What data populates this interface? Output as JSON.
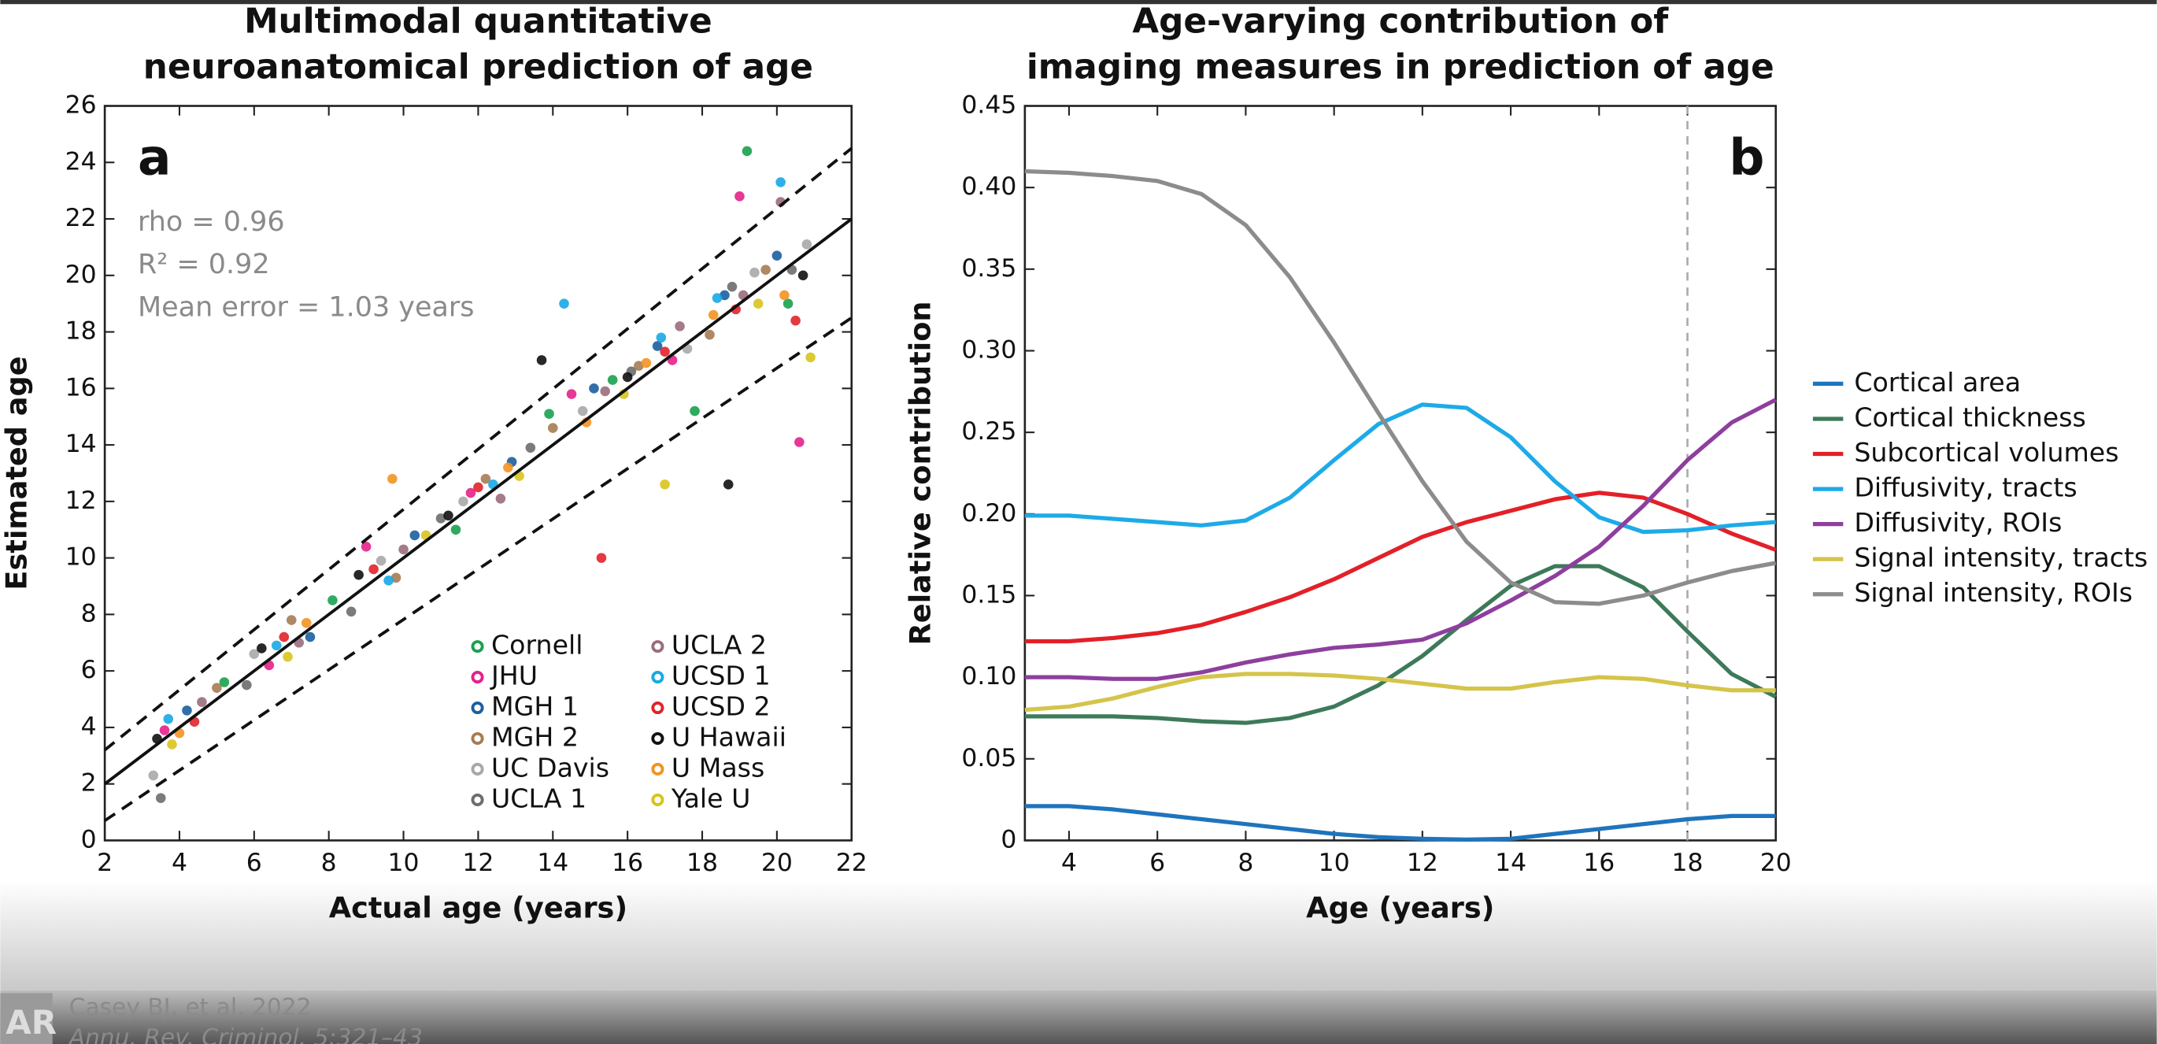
{
  "chart_data": [
    {
      "type": "scatter",
      "title": [
        "Multimodal quantitative",
        "neuroanatomical prediction of age"
      ],
      "x_label": "Actual age (years)",
      "y_label": "Estimated age",
      "panel_label": "a",
      "annotations": [
        "rho = 0.96",
        "R² = 0.92",
        "Mean error = 1.03 years"
      ],
      "xlim": [
        2,
        22
      ],
      "xticks": [
        2,
        4,
        6,
        8,
        10,
        12,
        14,
        16,
        18,
        20,
        22
      ],
      "ylim": [
        0,
        26
      ],
      "yticks": [
        0,
        2,
        4,
        6,
        8,
        10,
        12,
        14,
        16,
        18,
        20,
        22,
        24,
        26
      ],
      "legend": "lower right",
      "lines": [
        {
          "style": "solid",
          "x": [
            2,
            22
          ],
          "y": [
            2,
            22
          ]
        },
        {
          "style": "dashed",
          "x": [
            2,
            22
          ],
          "y": [
            3.2,
            24.5
          ]
        },
        {
          "style": "dashed",
          "x": [
            2,
            22
          ],
          "y": [
            0.7,
            18.5
          ]
        }
      ],
      "series": [
        {
          "name": "Cornell",
          "color": "#1aa14f",
          "x": [
            5.2,
            8.1,
            11.4,
            13.9,
            15.6,
            17.8,
            19.2,
            20.3
          ],
          "y": [
            5.6,
            8.5,
            11.0,
            15.1,
            16.3,
            15.2,
            24.4,
            19.0
          ]
        },
        {
          "name": "JHU",
          "color": "#e6218a",
          "x": [
            3.6,
            6.4,
            9.0,
            11.8,
            14.5,
            17.2,
            19.0,
            20.6
          ],
          "y": [
            3.9,
            6.2,
            10.4,
            12.3,
            15.8,
            17.0,
            22.8,
            14.1
          ]
        },
        {
          "name": "MGH 1",
          "color": "#1b5fa0",
          "x": [
            4.2,
            7.5,
            10.3,
            12.9,
            15.1,
            16.8,
            18.6,
            20.0
          ],
          "y": [
            4.6,
            7.2,
            10.8,
            13.4,
            16.0,
            17.5,
            19.3,
            20.7
          ]
        },
        {
          "name": "MGH 2",
          "color": "#a67c52",
          "x": [
            5.0,
            7.0,
            9.8,
            12.2,
            14.0,
            16.3,
            18.2,
            19.7
          ],
          "y": [
            5.4,
            7.8,
            9.3,
            12.8,
            14.6,
            16.8,
            17.9,
            20.2
          ]
        },
        {
          "name": "UC Davis",
          "color": "#a8a8a8",
          "x": [
            3.3,
            6.0,
            9.4,
            11.6,
            14.8,
            17.6,
            19.4,
            20.8
          ],
          "y": [
            2.3,
            6.6,
            9.9,
            12.0,
            15.2,
            17.4,
            20.1,
            21.1
          ]
        },
        {
          "name": "UCLA 1",
          "color": "#6d6d6d",
          "x": [
            3.5,
            5.8,
            8.6,
            11.0,
            13.4,
            16.1,
            18.8,
            20.4
          ],
          "y": [
            1.5,
            5.5,
            8.1,
            11.4,
            13.9,
            16.6,
            19.6,
            20.2
          ]
        },
        {
          "name": "UCLA 2",
          "color": "#9a6d7c",
          "x": [
            4.6,
            7.2,
            10.0,
            12.6,
            15.4,
            17.4,
            19.1,
            20.1
          ],
          "y": [
            4.9,
            7.0,
            10.3,
            12.1,
            15.9,
            18.2,
            19.3,
            22.6
          ]
        },
        {
          "name": "UCSD 1",
          "color": "#17a9e6",
          "x": [
            3.7,
            6.6,
            9.6,
            12.4,
            14.3,
            16.9,
            18.4,
            20.1
          ],
          "y": [
            4.3,
            6.9,
            9.2,
            12.6,
            19.0,
            17.8,
            19.2,
            23.3
          ]
        },
        {
          "name": "UCSD 2",
          "color": "#e0242a",
          "x": [
            4.4,
            6.8,
            9.2,
            12.0,
            15.3,
            17.0,
            18.9,
            20.5
          ],
          "y": [
            4.2,
            7.2,
            9.6,
            12.5,
            10.0,
            17.3,
            18.8,
            18.4
          ]
        },
        {
          "name": "U Hawaii",
          "color": "#111111",
          "x": [
            3.4,
            6.2,
            8.8,
            11.2,
            13.7,
            16.0,
            18.7,
            20.7
          ],
          "y": [
            3.6,
            6.8,
            9.4,
            11.5,
            17.0,
            16.4,
            12.6,
            20.0
          ]
        },
        {
          "name": "U Mass",
          "color": "#f39322",
          "x": [
            4.0,
            7.4,
            9.7,
            12.8,
            14.9,
            16.5,
            18.3,
            20.2
          ],
          "y": [
            3.8,
            7.7,
            12.8,
            13.2,
            14.8,
            16.9,
            18.6,
            19.3
          ]
        },
        {
          "name": "Yale U",
          "color": "#d8c41c",
          "x": [
            3.8,
            6.9,
            10.6,
            13.1,
            15.9,
            17.0,
            19.5,
            20.9
          ],
          "y": [
            3.4,
            6.5,
            10.8,
            12.9,
            15.8,
            12.6,
            19.0,
            17.1
          ]
        }
      ]
    },
    {
      "type": "line",
      "title": [
        "Age-varying contribution of",
        "imaging measures in prediction of age"
      ],
      "x_label": "Age (years)",
      "y_label": "Relative contribution",
      "panel_label": "b",
      "xlim": [
        3,
        20
      ],
      "xticks": [
        4,
        6,
        8,
        10,
        12,
        14,
        16,
        18,
        20
      ],
      "ylim": [
        0,
        0.45
      ],
      "yticks": [
        0,
        0.05,
        {
          "value": 0.1,
          "label": "0.10"
        },
        0.15,
        {
          "value": 0.2,
          "label": "0.20"
        },
        0.25,
        {
          "value": 0.3,
          "label": "0.30"
        },
        0.35,
        {
          "value": 0.4,
          "label": "0.40"
        },
        0.45
      ],
      "vline": 18,
      "legend": "right",
      "x": [
        3,
        4,
        5,
        6,
        7,
        8,
        9,
        10,
        11,
        12,
        13,
        14,
        15,
        16,
        17,
        18,
        19,
        20
      ],
      "series": [
        {
          "name": "Cortical area",
          "color": "#1f74bd",
          "values": [
            0.021,
            0.021,
            0.019,
            0.016,
            0.013,
            0.01,
            0.007,
            0.004,
            0.002,
            0.001,
            0.0005,
            0.001,
            0.004,
            0.007,
            0.01,
            0.013,
            0.015,
            0.015
          ]
        },
        {
          "name": "Cortical thickness",
          "color": "#3d7a5a",
          "values": [
            0.076,
            0.076,
            0.076,
            0.075,
            0.073,
            0.072,
            0.075,
            0.082,
            0.095,
            0.113,
            0.135,
            0.156,
            0.168,
            0.168,
            0.155,
            0.128,
            0.102,
            0.088
          ]
        },
        {
          "name": "Subcortical volumes",
          "color": "#e32028",
          "values": [
            0.122,
            0.122,
            0.124,
            0.127,
            0.132,
            0.14,
            0.149,
            0.16,
            0.173,
            0.186,
            0.195,
            0.202,
            0.209,
            0.213,
            0.21,
            0.2,
            0.188,
            0.178
          ]
        },
        {
          "name": "Diffusivity, tracts",
          "color": "#1eaae8",
          "values": [
            0.199,
            0.199,
            0.197,
            0.195,
            0.193,
            0.196,
            0.21,
            0.233,
            0.255,
            0.267,
            0.265,
            0.247,
            0.22,
            0.198,
            0.189,
            0.19,
            0.193,
            0.195
          ]
        },
        {
          "name": "Diffusivity, ROIs",
          "color": "#8e3f9e",
          "values": [
            0.1,
            0.1,
            0.099,
            0.099,
            0.103,
            0.109,
            0.114,
            0.118,
            0.12,
            0.123,
            0.133,
            0.147,
            0.162,
            0.18,
            0.205,
            0.233,
            0.256,
            0.27
          ]
        },
        {
          "name": "Signal intensity, tracts",
          "color": "#d4c44a",
          "values": [
            0.08,
            0.082,
            0.087,
            0.094,
            0.1,
            0.102,
            0.102,
            0.101,
            0.099,
            0.096,
            0.093,
            0.093,
            0.097,
            0.1,
            0.099,
            0.095,
            0.092,
            0.092
          ]
        },
        {
          "name": "Signal intensity, ROIs",
          "color": "#8c8c8c",
          "values": [
            0.41,
            0.409,
            0.407,
            0.404,
            0.396,
            0.377,
            0.345,
            0.305,
            0.262,
            0.22,
            0.183,
            0.158,
            0.146,
            0.145,
            0.15,
            0.158,
            0.165,
            0.17
          ]
        }
      ]
    }
  ],
  "footer": {
    "citation": "Casey BJ, et al. 2022",
    "journal": "Annu. Rev. Criminol. 5:321–43"
  }
}
